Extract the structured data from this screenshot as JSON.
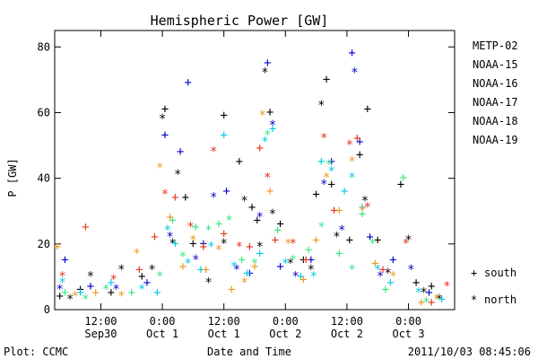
{
  "chart_data": {
    "type": "scatter",
    "title": "Hemispheric Power [GW]",
    "ylabel": "P [GW]",
    "xlabel": "Date and Time",
    "ylim": [
      0,
      85
    ],
    "xlim": [
      "2011-09-30 03:00",
      "2011-10-03 09:00"
    ],
    "yticks": [
      0,
      20,
      40,
      60,
      80
    ],
    "xticks": [
      {
        "t": "2011-09-30 12:00",
        "line1": "12:00",
        "line2": "Sep30"
      },
      {
        "t": "2011-10-01 00:00",
        "line1": "0:00",
        "line2": "Oct 1"
      },
      {
        "t": "2011-10-01 12:00",
        "line1": "12:00",
        "line2": "Oct 1"
      },
      {
        "t": "2011-10-02 00:00",
        "line1": "0:00",
        "line2": "Oct 2"
      },
      {
        "t": "2011-10-02 12:00",
        "line1": "12:00",
        "line2": "Oct 2"
      },
      {
        "t": "2011-10-03 00:00",
        "line1": "0:00",
        "line2": "Oct 3"
      }
    ],
    "marker_key": [
      {
        "symbol": "+",
        "label": "south"
      },
      {
        "symbol": "*",
        "label": "north"
      }
    ],
    "series": [
      {
        "name": "METP-02",
        "color": "#000000",
        "points": [
          [
            "2011-09-30 04:00",
            4,
            "+"
          ],
          [
            "2011-09-30 06:00",
            3,
            "*"
          ],
          [
            "2011-09-30 08:00",
            6,
            "+"
          ],
          [
            "2011-09-30 10:00",
            10,
            "*"
          ],
          [
            "2011-09-30 14:00",
            5,
            "+"
          ],
          [
            "2011-09-30 16:00",
            12,
            "*"
          ],
          [
            "2011-09-30 20:00",
            10,
            "+"
          ],
          [
            "2011-09-30 22:00",
            12,
            "*"
          ],
          [
            "2011-10-01 00:00",
            58,
            "*"
          ],
          [
            "2011-10-01 00:30",
            61,
            "+"
          ],
          [
            "2011-10-01 02:00",
            20,
            "*"
          ],
          [
            "2011-10-01 03:00",
            41,
            "*"
          ],
          [
            "2011-10-01 04:30",
            34,
            "+"
          ],
          [
            "2011-10-01 06:00",
            20,
            "+"
          ],
          [
            "2011-10-01 09:00",
            8,
            "*"
          ],
          [
            "2011-10-01 12:00",
            59,
            "+"
          ],
          [
            "2011-10-01 12:00",
            20,
            "*"
          ],
          [
            "2011-10-01 15:00",
            45,
            "+"
          ],
          [
            "2011-10-01 16:00",
            33,
            "*"
          ],
          [
            "2011-10-01 17:30",
            31,
            "+"
          ],
          [
            "2011-10-01 18:30",
            27,
            "+"
          ],
          [
            "2011-10-01 19:00",
            19,
            "*"
          ],
          [
            "2011-10-01 20:00",
            72,
            "*"
          ],
          [
            "2011-10-01 21:00",
            60,
            "+"
          ],
          [
            "2011-10-01 21:30",
            29,
            "*"
          ],
          [
            "2011-10-01 23:00",
            26,
            "+"
          ],
          [
            "2011-10-02 01:00",
            14,
            "*"
          ],
          [
            "2011-10-02 03:30",
            15,
            "+"
          ],
          [
            "2011-10-02 05:00",
            12,
            "*"
          ],
          [
            "2011-10-02 06:00",
            35,
            "+"
          ],
          [
            "2011-10-02 07:00",
            62,
            "*"
          ],
          [
            "2011-10-02 08:00",
            70,
            "+"
          ],
          [
            "2011-10-02 09:00",
            38,
            "+"
          ],
          [
            "2011-10-02 10:00",
            22,
            "*"
          ],
          [
            "2011-10-02 12:30",
            21,
            "+"
          ],
          [
            "2011-10-02 14:30",
            47,
            "+"
          ],
          [
            "2011-10-02 15:30",
            33,
            "*"
          ],
          [
            "2011-10-02 16:00",
            61,
            "+"
          ],
          [
            "2011-10-02 18:00",
            21,
            "+"
          ],
          [
            "2011-10-02 20:00",
            11,
            "*"
          ],
          [
            "2011-10-02 22:30",
            38,
            "+"
          ],
          [
            "2011-10-03 00:00",
            21,
            "*"
          ],
          [
            "2011-10-03 01:30",
            8,
            "+"
          ],
          [
            "2011-10-03 03:00",
            5,
            "*"
          ],
          [
            "2011-10-03 04:30",
            7,
            "+"
          ],
          [
            "2011-10-03 06:00",
            3,
            "*"
          ]
        ]
      },
      {
        "name": "NOAA-15",
        "color": "#0000cc",
        "points": [
          [
            "2011-09-30 04:00",
            6,
            "*"
          ],
          [
            "2011-09-30 05:00",
            15,
            "+"
          ],
          [
            "2011-09-30 10:00",
            7,
            "+"
          ],
          [
            "2011-09-30 15:00",
            6,
            "*"
          ],
          [
            "2011-09-30 21:00",
            8,
            "+"
          ],
          [
            "2011-10-01 00:30",
            53,
            "+"
          ],
          [
            "2011-10-01 01:30",
            22,
            "*"
          ],
          [
            "2011-10-01 03:30",
            48,
            "+"
          ],
          [
            "2011-10-01 05:00",
            69,
            "+"
          ],
          [
            "2011-10-01 06:30",
            15,
            "*"
          ],
          [
            "2011-10-01 08:00",
            20,
            "+"
          ],
          [
            "2011-10-01 10:00",
            34,
            "*"
          ],
          [
            "2011-10-01 12:30",
            36,
            "+"
          ],
          [
            "2011-10-01 14:30",
            12,
            "*"
          ],
          [
            "2011-10-01 17:00",
            11,
            "+"
          ],
          [
            "2011-10-01 19:00",
            28,
            "*"
          ],
          [
            "2011-10-01 20:30",
            75,
            "+"
          ],
          [
            "2011-10-01 21:30",
            56,
            "*"
          ],
          [
            "2011-10-01 23:00",
            13,
            "+"
          ],
          [
            "2011-10-02 02:00",
            10,
            "*"
          ],
          [
            "2011-10-02 05:00",
            15,
            "+"
          ],
          [
            "2011-10-02 07:30",
            38,
            "*"
          ],
          [
            "2011-10-02 09:00",
            45,
            "+"
          ],
          [
            "2011-10-02 11:00",
            24,
            "*"
          ],
          [
            "2011-10-02 13:00",
            78,
            "+"
          ],
          [
            "2011-10-02 13:30",
            72,
            "*"
          ],
          [
            "2011-10-02 14:30",
            51,
            "+"
          ],
          [
            "2011-10-02 16:30",
            22,
            "+"
          ],
          [
            "2011-10-02 18:30",
            10,
            "*"
          ],
          [
            "2011-10-02 21:00",
            15,
            "+"
          ],
          [
            "2011-10-03 00:30",
            12,
            "*"
          ],
          [
            "2011-10-03 04:00",
            5,
            "+"
          ]
        ]
      },
      {
        "name": "NOAA-16",
        "color": "#00c8e6",
        "points": [
          [
            "2011-09-30 04:30",
            8,
            "*"
          ],
          [
            "2011-09-30 08:00",
            5,
            "+"
          ],
          [
            "2011-09-30 14:00",
            8,
            "+"
          ],
          [
            "2011-09-30 20:00",
            6,
            "*"
          ],
          [
            "2011-09-30 23:00",
            5,
            "+"
          ],
          [
            "2011-10-01 01:00",
            24,
            "*"
          ],
          [
            "2011-10-01 02:30",
            20,
            "+"
          ],
          [
            "2011-10-01 05:00",
            14,
            "*"
          ],
          [
            "2011-10-01 07:30",
            12,
            "+"
          ],
          [
            "2011-10-01 09:30",
            19,
            "*"
          ],
          [
            "2011-10-01 12:00",
            53,
            "+"
          ],
          [
            "2011-10-01 14:00",
            13,
            "*"
          ],
          [
            "2011-10-01 16:30",
            11,
            "+"
          ],
          [
            "2011-10-01 19:00",
            17,
            "+"
          ],
          [
            "2011-10-01 20:00",
            51,
            "*"
          ],
          [
            "2011-10-01 21:30",
            55,
            "+"
          ],
          [
            "2011-10-02 00:00",
            14,
            "*"
          ],
          [
            "2011-10-02 03:00",
            10,
            "+"
          ],
          [
            "2011-10-02 05:30",
            10,
            "*"
          ],
          [
            "2011-10-02 07:00",
            45,
            "+"
          ],
          [
            "2011-10-02 09:00",
            42,
            "*"
          ],
          [
            "2011-10-02 11:30",
            36,
            "+"
          ],
          [
            "2011-10-02 13:00",
            40,
            "*"
          ],
          [
            "2011-10-02 15:00",
            31,
            "+"
          ],
          [
            "2011-10-02 18:00",
            12,
            "*"
          ],
          [
            "2011-10-02 20:30",
            8,
            "+"
          ],
          [
            "2011-10-03 02:00",
            5,
            "*"
          ],
          [
            "2011-10-03 06:30",
            3,
            "+"
          ]
        ]
      },
      {
        "name": "NOAA-17",
        "color": "#33e680",
        "points": [
          [
            "2011-09-30 05:00",
            5,
            "+"
          ],
          [
            "2011-09-30 09:00",
            3,
            "*"
          ],
          [
            "2011-09-30 13:00",
            6,
            "*"
          ],
          [
            "2011-09-30 18:00",
            5,
            "+"
          ],
          [
            "2011-09-30 23:30",
            10,
            "*"
          ],
          [
            "2011-10-01 02:00",
            27,
            "+"
          ],
          [
            "2011-10-01 04:00",
            16,
            "*"
          ],
          [
            "2011-10-01 06:30",
            25,
            "+"
          ],
          [
            "2011-10-01 09:00",
            24,
            "*"
          ],
          [
            "2011-10-01 11:00",
            26,
            "+"
          ],
          [
            "2011-10-01 13:00",
            27,
            "*"
          ],
          [
            "2011-10-01 15:30",
            15,
            "+"
          ],
          [
            "2011-10-01 18:00",
            14,
            "*"
          ],
          [
            "2011-10-01 20:30",
            53,
            "*"
          ],
          [
            "2011-10-01 22:30",
            24,
            "+"
          ],
          [
            "2011-10-02 01:30",
            15,
            "*"
          ],
          [
            "2011-10-02 04:30",
            18,
            "+"
          ],
          [
            "2011-10-02 07:00",
            25,
            "*"
          ],
          [
            "2011-10-02 08:30",
            44,
            "*"
          ],
          [
            "2011-10-02 10:30",
            17,
            "+"
          ],
          [
            "2011-10-02 13:00",
            12,
            "*"
          ],
          [
            "2011-10-02 15:00",
            29,
            "+"
          ],
          [
            "2011-10-02 17:00",
            20,
            "*"
          ],
          [
            "2011-10-02 19:30",
            6,
            "+"
          ],
          [
            "2011-10-02 23:00",
            40,
            "+"
          ],
          [
            "2011-10-03 03:30",
            2,
            "*"
          ]
        ]
      },
      {
        "name": "NOAA-18",
        "color": "#f0961e",
        "points": [
          [
            "2011-09-30 03:30",
            19,
            "+"
          ],
          [
            "2011-09-30 07:00",
            4,
            "*"
          ],
          [
            "2011-09-30 11:00",
            5,
            "+"
          ],
          [
            "2011-09-30 16:00",
            4,
            "*"
          ],
          [
            "2011-09-30 19:00",
            17,
            "*"
          ],
          [
            "2011-09-30 23:30",
            43,
            "*"
          ],
          [
            "2011-10-01 01:30",
            28,
            "+"
          ],
          [
            "2011-10-01 04:00",
            13,
            "+"
          ],
          [
            "2011-10-01 06:00",
            21,
            "*"
          ],
          [
            "2011-10-01 08:30",
            12,
            "+"
          ],
          [
            "2011-10-01 11:00",
            18,
            "*"
          ],
          [
            "2011-10-01 13:30",
            6,
            "+"
          ],
          [
            "2011-10-01 16:00",
            8,
            "*"
          ],
          [
            "2011-10-01 18:00",
            13,
            "+"
          ],
          [
            "2011-10-01 19:30",
            59,
            "*"
          ],
          [
            "2011-10-01 21:00",
            36,
            "+"
          ],
          [
            "2011-10-02 00:30",
            20,
            "*"
          ],
          [
            "2011-10-02 03:30",
            9,
            "+"
          ],
          [
            "2011-10-02 06:00",
            21,
            "+"
          ],
          [
            "2011-10-02 08:00",
            40,
            "*"
          ],
          [
            "2011-10-02 10:30",
            30,
            "+"
          ],
          [
            "2011-10-02 13:00",
            45,
            "*"
          ],
          [
            "2011-10-02 15:00",
            30,
            "*"
          ],
          [
            "2011-10-02 17:30",
            14,
            "+"
          ],
          [
            "2011-10-02 21:00",
            10,
            "*"
          ],
          [
            "2011-10-03 02:30",
            2,
            "+"
          ],
          [
            "2011-10-03 05:30",
            3,
            "*"
          ]
        ]
      },
      {
        "name": "NOAA-19",
        "color": "#e6321e",
        "points": [
          [
            "2011-09-30 04:30",
            10,
            "*"
          ],
          [
            "2011-09-30 09:00",
            25,
            "+"
          ],
          [
            "2011-09-30 14:30",
            9,
            "*"
          ],
          [
            "2011-09-30 19:30",
            12,
            "+"
          ],
          [
            "2011-09-30 22:30",
            22,
            "+"
          ],
          [
            "2011-10-01 00:30",
            35,
            "*"
          ],
          [
            "2011-10-01 02:30",
            34,
            "+"
          ],
          [
            "2011-10-01 05:30",
            25,
            "*"
          ],
          [
            "2011-10-01 08:00",
            19,
            "+"
          ],
          [
            "2011-10-01 10:00",
            48,
            "*"
          ],
          [
            "2011-10-01 12:00",
            23,
            "+"
          ],
          [
            "2011-10-01 15:00",
            19,
            "*"
          ],
          [
            "2011-10-01 17:00",
            19,
            "+"
          ],
          [
            "2011-10-01 19:00",
            49,
            "+"
          ],
          [
            "2011-10-01 20:30",
            40,
            "*"
          ],
          [
            "2011-10-01 22:00",
            21,
            "+"
          ],
          [
            "2011-10-02 01:30",
            20,
            "*"
          ],
          [
            "2011-10-02 04:00",
            15,
            "+"
          ],
          [
            "2011-10-02 07:30",
            52,
            "*"
          ],
          [
            "2011-10-02 09:30",
            30,
            "+"
          ],
          [
            "2011-10-02 12:30",
            50,
            "*"
          ],
          [
            "2011-10-02 14:00",
            52,
            "+"
          ],
          [
            "2011-10-02 16:00",
            31,
            "*"
          ],
          [
            "2011-10-02 19:00",
            12,
            "+"
          ],
          [
            "2011-10-02 23:30",
            20,
            "*"
          ],
          [
            "2011-10-03 04:30",
            2,
            "+"
          ],
          [
            "2011-10-03 07:30",
            7,
            "*"
          ]
        ]
      }
    ]
  },
  "footer": {
    "left": "Plot: CCMC",
    "right": "2011/10/03 08:45:06"
  }
}
